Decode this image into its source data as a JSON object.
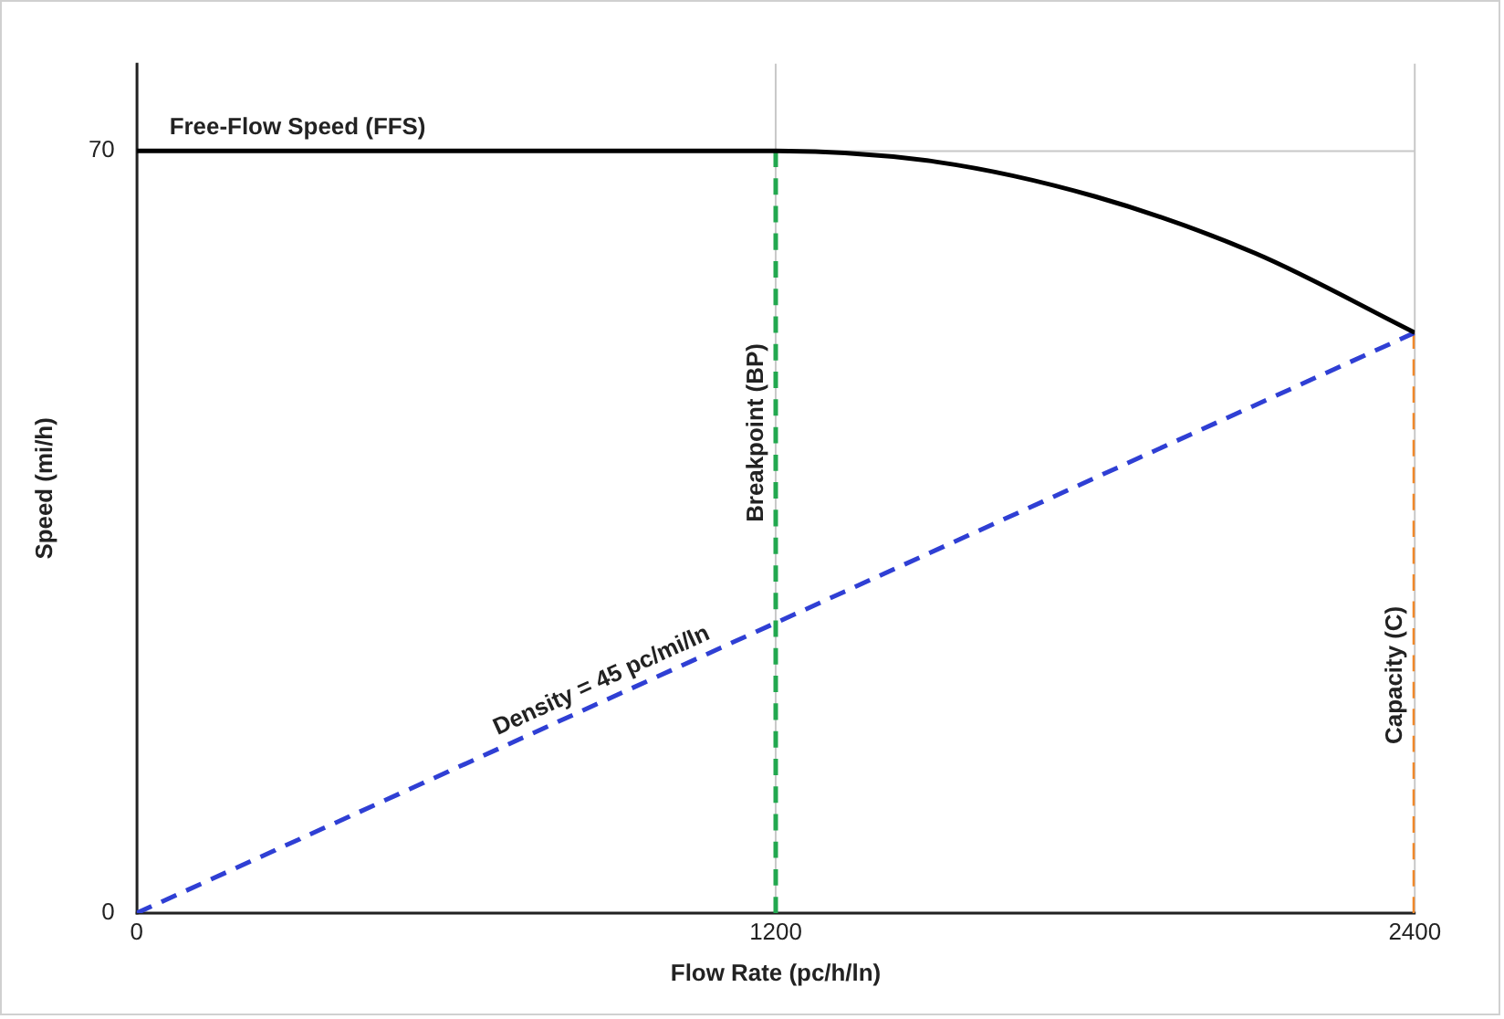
{
  "chart_data": {
    "type": "line",
    "xlabel": "Flow Rate (pc/h/ln)",
    "ylabel": "Speed (mi/h)",
    "xlim": [
      0,
      2400
    ],
    "xticks": [
      0,
      1200,
      2400
    ],
    "ylim": [
      0,
      78
    ],
    "yticks": [
      0,
      70
    ],
    "grid": true,
    "legend": false,
    "marker": "none",
    "series": [
      {
        "name": "Free-Flow Speed (FFS)",
        "color": "#000000",
        "line_style": "solid",
        "x": [
          0,
          1200,
          1500,
          1800,
          2100,
          2400
        ],
        "values": [
          70,
          70,
          69,
          65.8,
          60.6,
          53.3
        ]
      },
      {
        "name": "Density = 45 pc/mi/ln",
        "color": "#2f3fd4",
        "line_style": "dashed",
        "x": [
          0,
          2400
        ],
        "values": [
          0,
          53.3
        ]
      },
      {
        "name": "Breakpoint (BP)",
        "color": "#22a84f",
        "line_style": "dashed",
        "x": [
          1200,
          1200
        ],
        "values": [
          0,
          70
        ]
      },
      {
        "name": "Capacity (C)",
        "color": "#f0882a",
        "line_style": "dashed",
        "x": [
          2400,
          2400
        ],
        "values": [
          0,
          53.3
        ]
      }
    ]
  }
}
